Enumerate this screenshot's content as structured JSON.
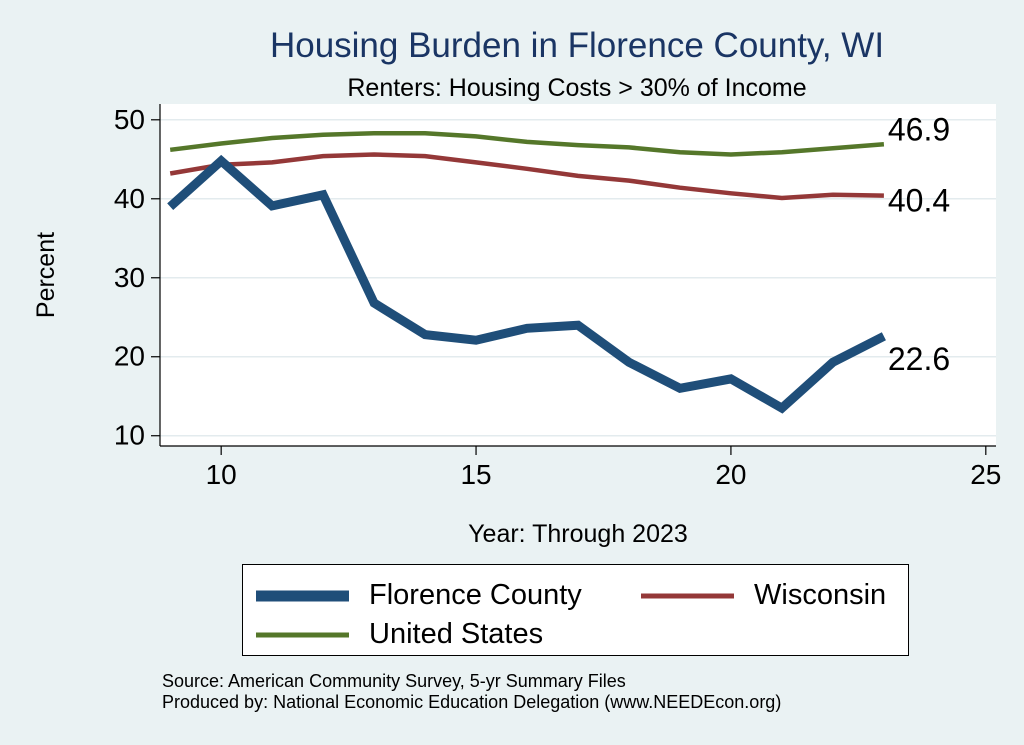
{
  "chart_data": {
    "type": "line",
    "title": "Housing Burden in Florence County, WI",
    "subtitle": "Renters: Housing Costs > 30% of Income",
    "xlabel": "Year: Through 2023",
    "ylabel": "Percent",
    "xlim": [
      8.8,
      25.2
    ],
    "ylim": [
      8.7,
      52
    ],
    "xticks": [
      10,
      15,
      20,
      25
    ],
    "yticks": [
      10,
      20,
      30,
      40,
      50
    ],
    "grid": true,
    "legend_position": "bottom",
    "series": [
      {
        "name": "Florence County",
        "color": "#1f4e79",
        "x": [
          9,
          10,
          11,
          12,
          13,
          14,
          15,
          16,
          17,
          18,
          19,
          20,
          21,
          22,
          23
        ],
        "values": [
          39.0,
          44.8,
          39.1,
          40.5,
          26.8,
          22.8,
          22.1,
          23.6,
          24.0,
          19.3,
          16.0,
          17.2,
          13.5,
          19.3,
          22.6
        ],
        "end_label": "22.6"
      },
      {
        "name": "Wisconsin",
        "color": "#943838",
        "x": [
          9,
          10,
          11,
          12,
          13,
          14,
          15,
          16,
          17,
          18,
          19,
          20,
          21,
          22,
          23
        ],
        "values": [
          43.2,
          44.3,
          44.6,
          45.4,
          45.6,
          45.4,
          44.6,
          43.8,
          42.9,
          42.3,
          41.4,
          40.7,
          40.1,
          40.5,
          40.4
        ],
        "end_label": "40.4"
      },
      {
        "name": "United States",
        "color": "#55772a",
        "x": [
          9,
          10,
          11,
          12,
          13,
          14,
          15,
          16,
          17,
          18,
          19,
          20,
          21,
          22,
          23
        ],
        "values": [
          46.2,
          47.0,
          47.7,
          48.1,
          48.3,
          48.3,
          47.9,
          47.2,
          46.8,
          46.5,
          45.9,
          45.6,
          45.9,
          46.4,
          46.9
        ],
        "end_label": "46.9"
      }
    ]
  },
  "legend": {
    "items": [
      "Florence County",
      "Wisconsin",
      "United States"
    ]
  },
  "footer": {
    "source": "Source: American Community Survey, 5-yr Summary Files",
    "produced_by": "Produced by: National Economic Education Delegation (www.NEEDEcon.org)"
  },
  "colors": {
    "background": "#eaf2f3",
    "plot_background": "#ffffff",
    "title": "#1a3564"
  }
}
